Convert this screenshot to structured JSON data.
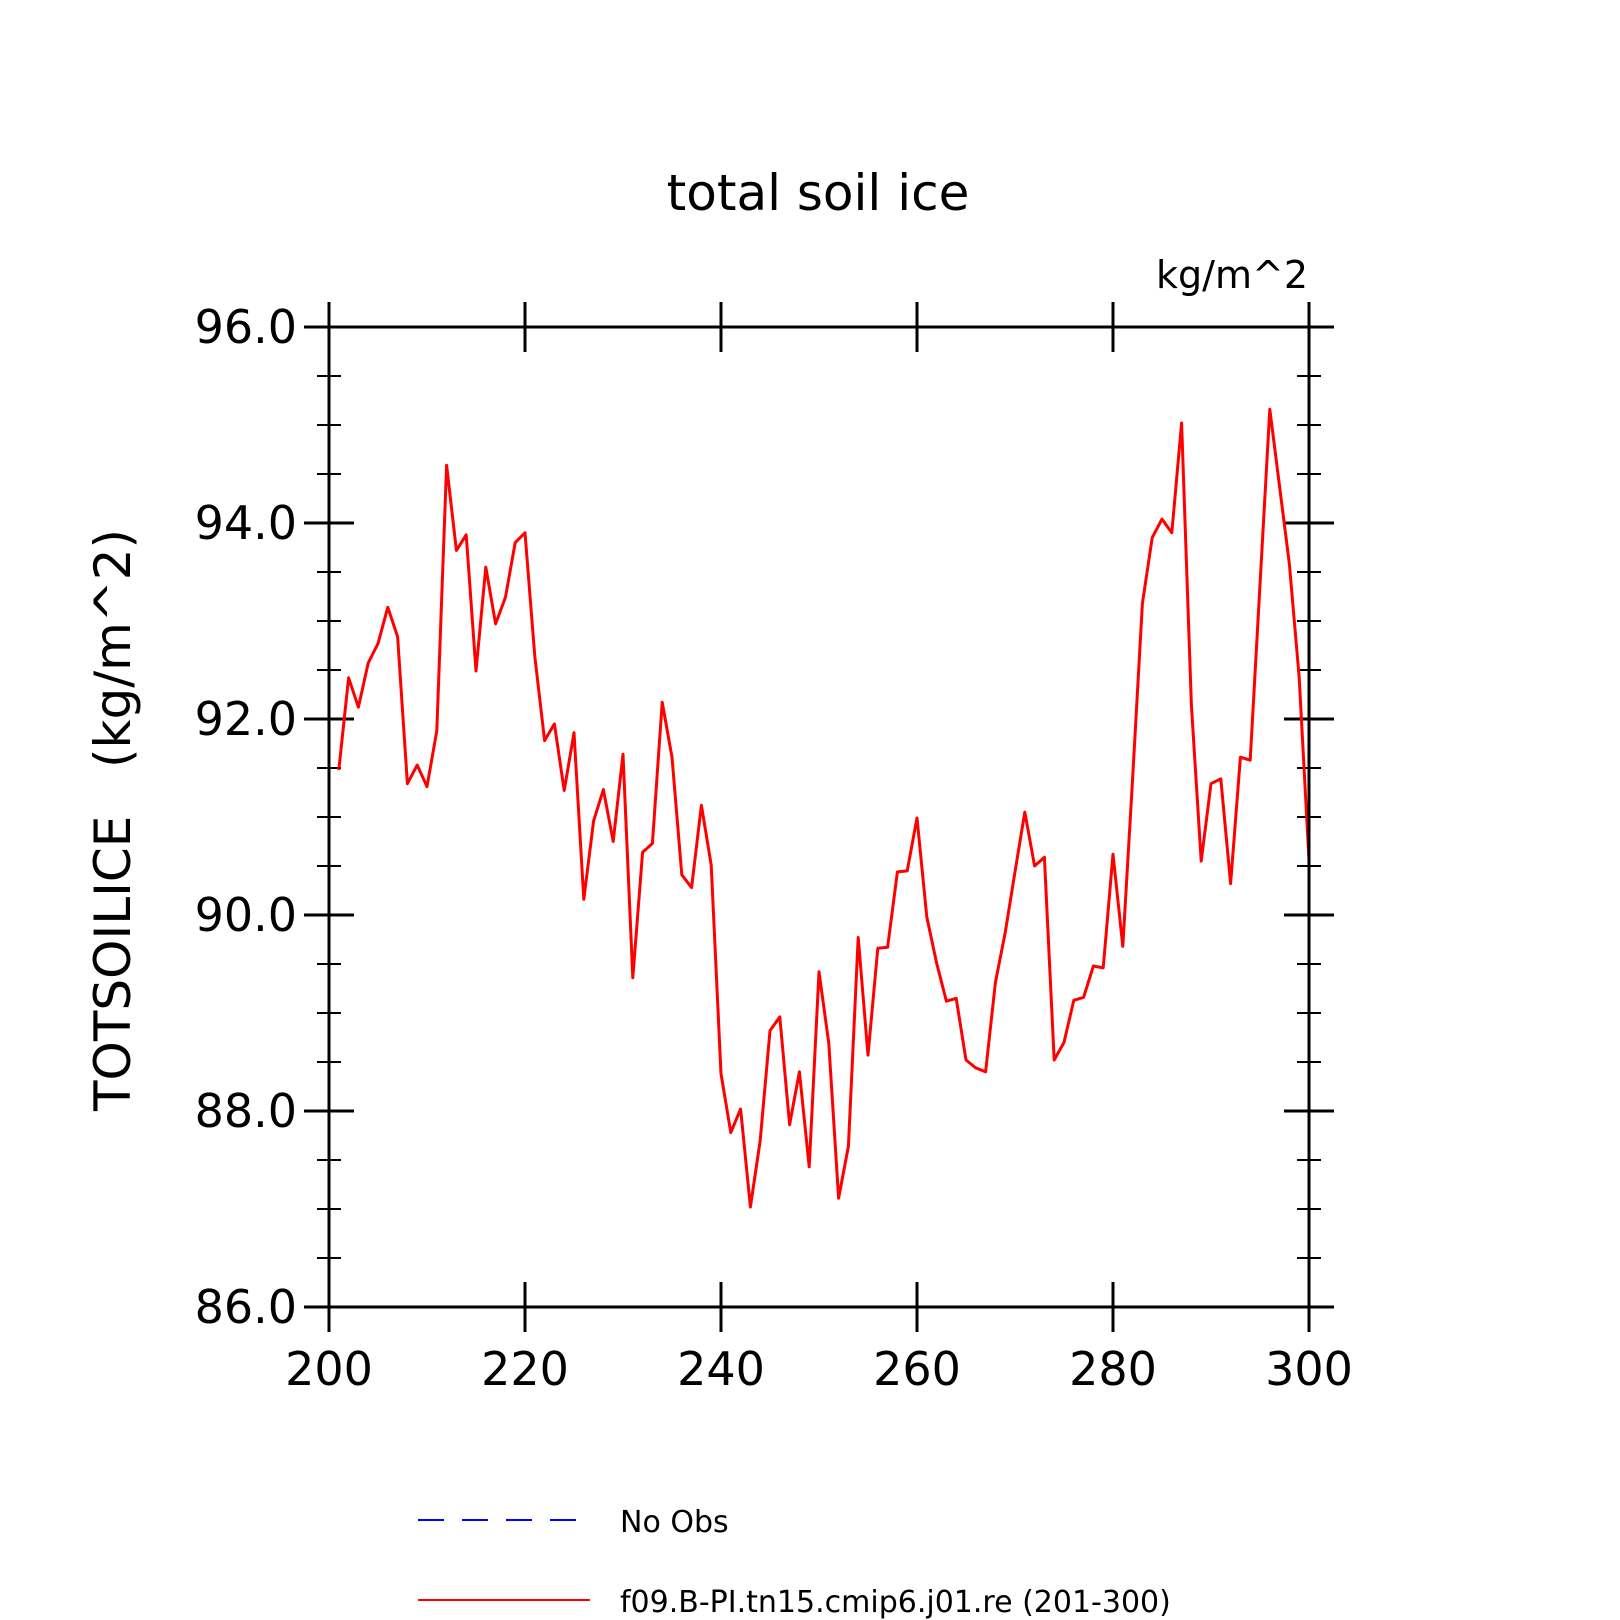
{
  "chart_data": {
    "type": "line",
    "title": "total soil ice",
    "units_label": "kg/m^2",
    "ylabel": "TOTSOILICE   (kg/m^2)",
    "xlabel": "",
    "xlim": [
      200,
      300
    ],
    "ylim": [
      86.0,
      96.0
    ],
    "x_ticks": [
      200,
      220,
      240,
      260,
      280,
      300
    ],
    "x_tick_labels": [
      "200",
      "220",
      "240",
      "260",
      "280",
      "300"
    ],
    "y_ticks": [
      86.0,
      88.0,
      90.0,
      92.0,
      94.0,
      96.0
    ],
    "y_tick_labels": [
      "86.0",
      "88.0",
      "90.0",
      "92.0",
      "94.0",
      "96.0"
    ],
    "grid": false,
    "legend_position": "bottom",
    "colors": {
      "obs": "#0000ff",
      "model": "#ff0000"
    },
    "legend": [
      {
        "label": "No Obs",
        "style": "dashed",
        "color": "#0000ff"
      },
      {
        "label": "f09.B-PI.tn15.cmip6.j01.re (201-300)",
        "style": "solid",
        "color": "#ff0000"
      }
    ],
    "series": [
      {
        "name": "f09.B-PI.tn15.cmip6.j01.re (201-300)",
        "color": "#ff0000",
        "x": [
          201,
          202,
          203,
          204,
          205,
          206,
          207,
          208,
          209,
          210,
          211,
          212,
          213,
          214,
          215,
          216,
          217,
          218,
          219,
          220,
          221,
          222,
          223,
          224,
          225,
          226,
          227,
          228,
          229,
          230,
          231,
          232,
          233,
          234,
          235,
          236,
          237,
          238,
          239,
          240,
          241,
          242,
          243,
          244,
          245,
          246,
          247,
          248,
          249,
          250,
          251,
          252,
          253,
          254,
          255,
          256,
          257,
          258,
          259,
          260,
          261,
          262,
          263,
          264,
          265,
          266,
          267,
          268,
          269,
          270,
          271,
          272,
          273,
          274,
          275,
          276,
          277,
          278,
          279,
          280,
          281,
          282,
          283,
          284,
          285,
          286,
          287,
          288,
          289,
          290,
          291,
          292,
          293,
          294,
          295,
          296,
          297,
          298,
          299,
          300
        ],
        "values": [
          91.48,
          92.42,
          92.12,
          92.57,
          92.77,
          93.14,
          92.84,
          91.34,
          91.53,
          91.31,
          91.88,
          94.59,
          93.72,
          93.88,
          92.49,
          93.55,
          92.97,
          93.24,
          93.8,
          93.9,
          92.64,
          91.78,
          91.95,
          91.27,
          91.86,
          90.16,
          90.96,
          91.28,
          90.75,
          91.64,
          89.36,
          90.64,
          90.73,
          92.17,
          91.61,
          90.41,
          90.28,
          91.12,
          90.51,
          88.38,
          87.78,
          88.02,
          87.02,
          87.7,
          88.82,
          88.96,
          87.86,
          88.4,
          87.43,
          89.42,
          88.69,
          87.11,
          87.64,
          89.77,
          88.57,
          89.66,
          89.67,
          90.44,
          90.45,
          90.99,
          89.98,
          89.51,
          89.12,
          89.15,
          88.52,
          88.44,
          88.4,
          89.31,
          89.82,
          90.44,
          91.05,
          90.5,
          90.59,
          88.52,
          88.7,
          89.13,
          89.16,
          89.48,
          89.46,
          90.62,
          89.68,
          91.39,
          93.18,
          93.85,
          94.04,
          93.9,
          95.02,
          92.14,
          90.55,
          91.34,
          91.39,
          90.32,
          91.61,
          91.58,
          93.37,
          95.16,
          94.37,
          93.58,
          92.42,
          90.56
        ]
      }
    ]
  }
}
